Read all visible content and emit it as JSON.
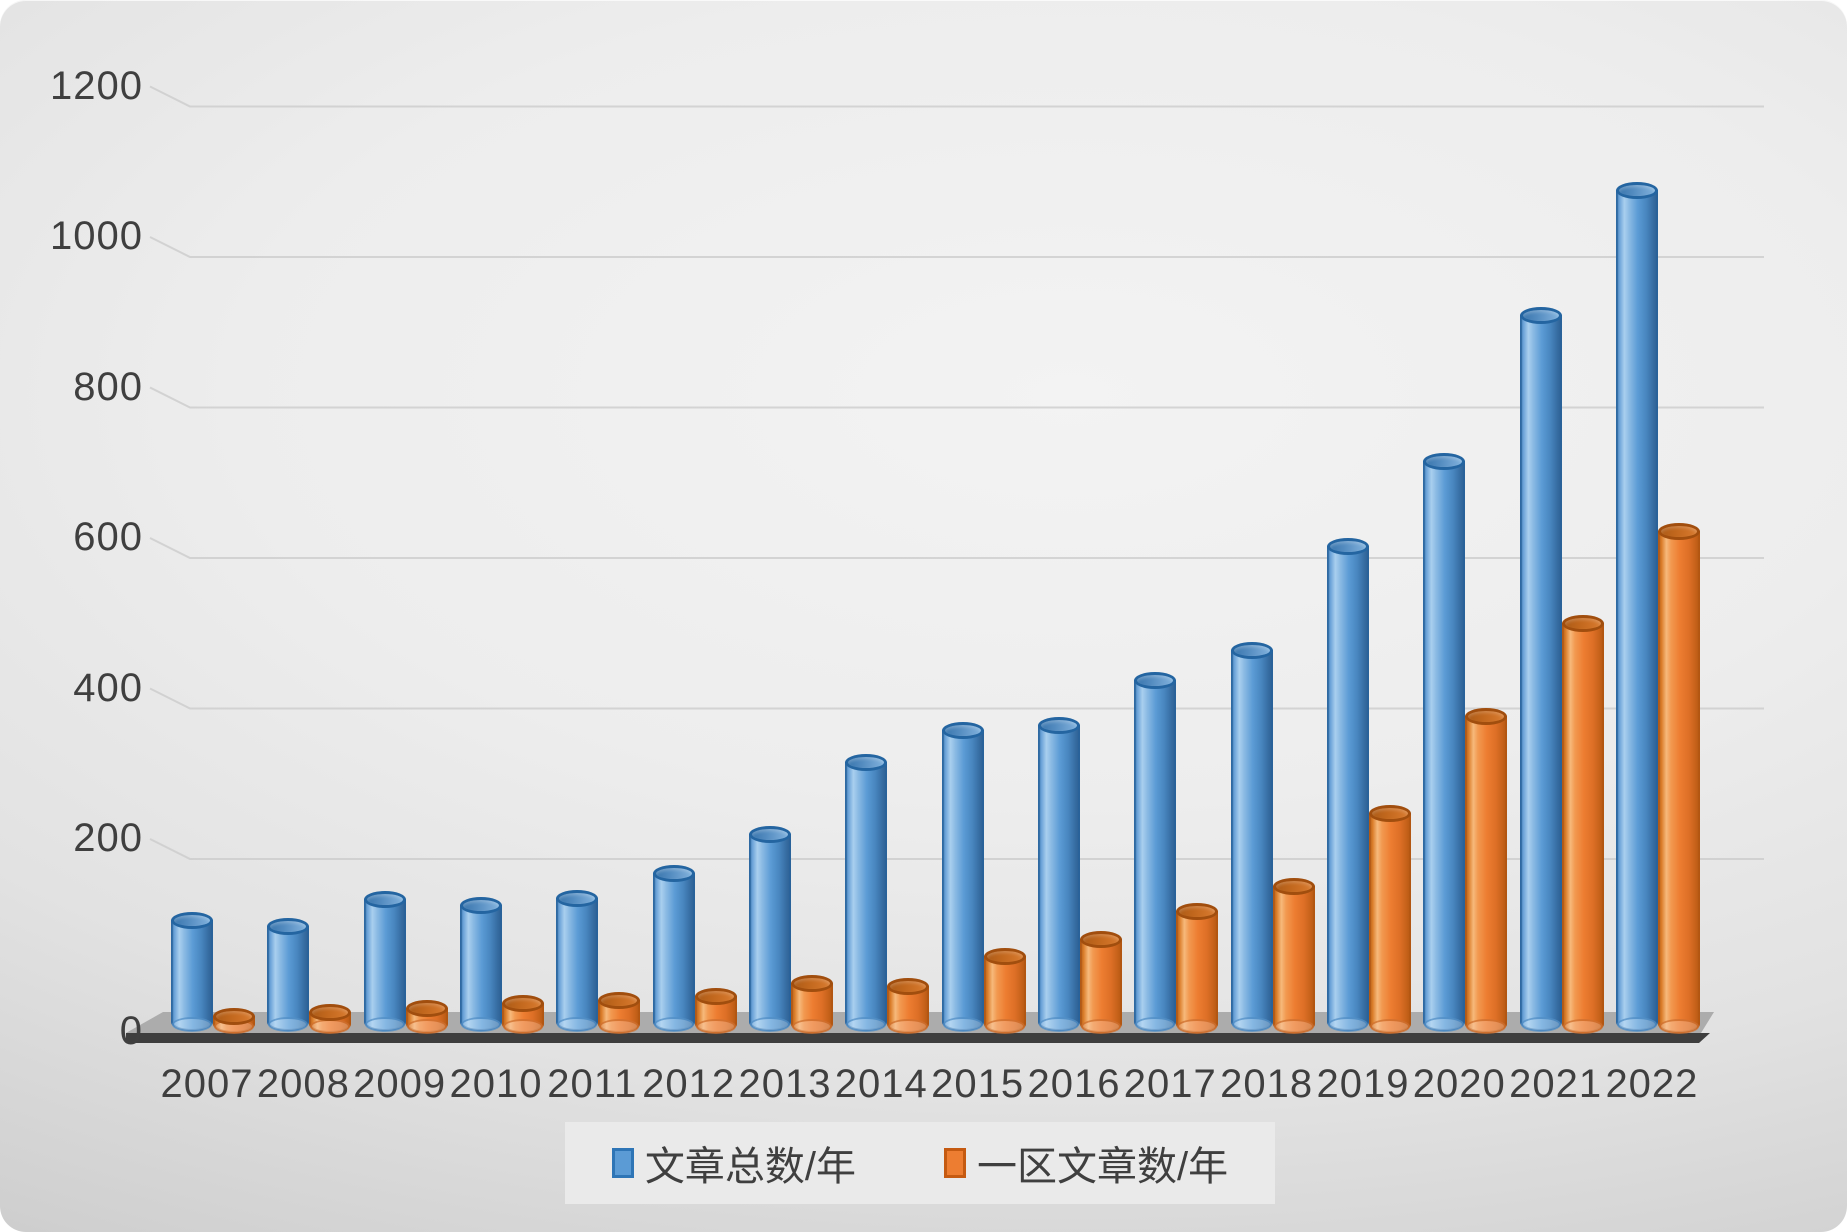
{
  "chart_data": {
    "type": "bar",
    "subtype": "3d-cylinder-clustered",
    "title": "",
    "xlabel": "",
    "ylabel": "",
    "categories": [
      "2007",
      "2008",
      "2009",
      "2010",
      "2011",
      "2012",
      "2013",
      "2014",
      "2015",
      "2016",
      "2017",
      "2018",
      "2019",
      "2020",
      "2021",
      "2022"
    ],
    "series": [
      {
        "name": "文章总数/年",
        "fill": "#5B9BD5",
        "rim": "#2E75B6",
        "values": [
          135,
          128,
          163,
          156,
          165,
          198,
          250,
          345,
          388,
          395,
          455,
          495,
          632,
          745,
          940,
          1105
        ]
      },
      {
        "name": "一区文章数/年",
        "fill": "#ED7D31",
        "rim": "#C55A11",
        "values": [
          8,
          13,
          19,
          25,
          29,
          35,
          52,
          48,
          88,
          110,
          148,
          181,
          278,
          407,
          530,
          652
        ]
      }
    ],
    "ylim": [
      0,
      1200
    ],
    "ytick_interval": 200,
    "yticks": [
      "0",
      "200",
      "400",
      "600",
      "800",
      "1000",
      "1200"
    ],
    "grid": true,
    "legend_position": "bottom-center",
    "background": "light-gray-gradient",
    "text_color": "#3F3F3F",
    "gridline_color": "#C9C9C9",
    "floor_top_color": "#ACACAC",
    "floor_front_color": "#3E3E3E"
  }
}
